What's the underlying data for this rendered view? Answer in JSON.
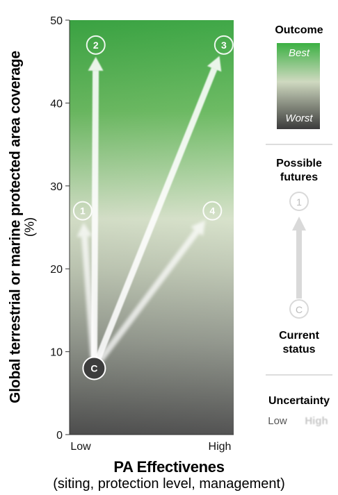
{
  "chart_data": {
    "type": "scatter",
    "xlabel": "PA Effectivenes",
    "xlabel_sub": "(siting, protection level, management)",
    "ylabel": "Global terrestrial or marine protected area coverage",
    "ylabel_unit": "(%)",
    "x_tick_labels": [
      "Low",
      "High"
    ],
    "x_positions": {
      "Low": 0,
      "High": 1
    },
    "xlim": [
      0,
      1
    ],
    "ylim": [
      0,
      50
    ],
    "y_ticks": [
      0,
      10,
      20,
      30,
      40,
      50
    ],
    "grid": false,
    "background_gradient": "outcome (green = best at top, dark grey = worst at bottom)",
    "points": [
      {
        "label": "C",
        "name": "current-status",
        "x": 0.15,
        "y": 8
      },
      {
        "label": "1",
        "name": "future-1",
        "x": 0.08,
        "y": 27
      },
      {
        "label": "2",
        "name": "future-2",
        "x": 0.16,
        "y": 47
      },
      {
        "label": "3",
        "name": "future-3",
        "x": 0.94,
        "y": 47
      },
      {
        "label": "4",
        "name": "future-4",
        "x": 0.87,
        "y": 27
      }
    ],
    "arrows": [
      {
        "from": "C",
        "to": "1",
        "uncertainty": "high"
      },
      {
        "from": "C",
        "to": "2",
        "uncertainty": "low"
      },
      {
        "from": "C",
        "to": "3",
        "uncertainty": "low"
      },
      {
        "from": "C",
        "to": "4",
        "uncertainty": "high"
      }
    ]
  },
  "legend": {
    "outcome": {
      "title": "Outcome",
      "best": "Best",
      "worst": "Worst",
      "color_best": "#3cb043",
      "color_mid": "#c9d2bc",
      "color_worst": "#3b3b3b"
    },
    "futures": {
      "title_line1": "Possible",
      "title_line2": "futures",
      "future_label": "1",
      "current_label": "C",
      "current_line1": "Current",
      "current_line2": "status"
    },
    "uncertainty": {
      "title": "Uncertainty",
      "low": "Low",
      "high": "High"
    }
  }
}
